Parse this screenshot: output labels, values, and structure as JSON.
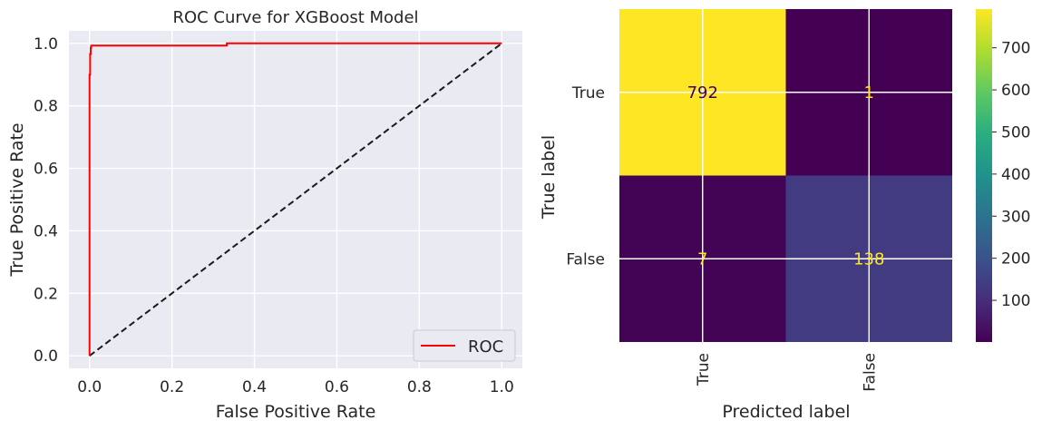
{
  "chart_data": [
    {
      "type": "line",
      "title": "ROC Curve for XGBoost Model",
      "xlabel": "False Positive Rate",
      "ylabel": "True Positive Rate",
      "xlim": [
        -0.05,
        1.05
      ],
      "ylim": [
        -0.04,
        1.04
      ],
      "xticks": [
        "0.0",
        "0.2",
        "0.4",
        "0.6",
        "0.8",
        "1.0"
      ],
      "yticks": [
        "0.0",
        "0.2",
        "0.4",
        "0.6",
        "0.8",
        "1.0"
      ],
      "grid": true,
      "legend_position": "lower-right",
      "series": [
        {
          "name": "ROC",
          "color": "#ff0000",
          "x": [
            0.0,
            0.0,
            0.0,
            0.0,
            0.0014,
            0.0014,
            0.0028,
            0.0028,
            0.004,
            0.004,
            0.333,
            0.333,
            1.0
          ],
          "y": [
            0.0,
            0.3,
            0.6,
            0.9,
            0.9,
            0.966,
            0.966,
            0.986,
            0.986,
            0.993,
            0.993,
            1.0,
            1.0
          ]
        },
        {
          "color": "#1a1a1a",
          "style": "dashed",
          "x": [
            0.0,
            1.0
          ],
          "y": [
            0.0,
            1.0
          ]
        }
      ]
    },
    {
      "type": "heatmap",
      "xlabel": "Predicted label",
      "ylabel": "True label",
      "x_categories": [
        "True",
        "False"
      ],
      "y_categories": [
        "True",
        "False"
      ],
      "values": [
        [
          792,
          1
        ],
        [
          7,
          138
        ]
      ],
      "colormap": "viridis",
      "colorbar_ticks": [
        "100",
        "200",
        "300",
        "400",
        "500",
        "600",
        "700"
      ],
      "colorbar_range": [
        1,
        792
      ]
    }
  ]
}
